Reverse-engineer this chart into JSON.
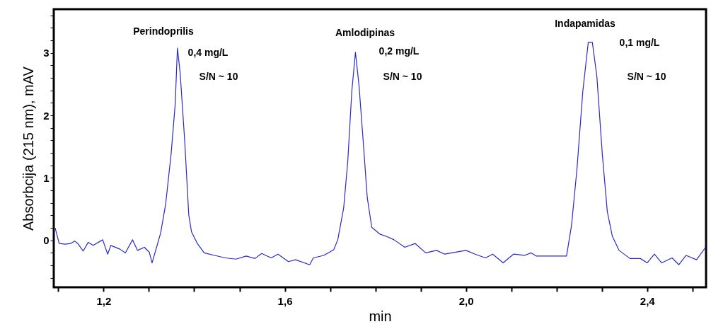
{
  "chart_data": {
    "type": "line",
    "xlabel": "min",
    "ylabel": "Absorbcija (215 nm), mAV",
    "x": [
      1.093,
      1.102,
      1.115,
      1.127,
      1.136,
      1.143,
      1.155,
      1.166,
      1.177,
      1.198,
      1.209,
      1.216,
      1.236,
      1.248,
      1.264,
      1.275,
      1.29,
      1.301,
      1.307,
      1.317,
      1.326,
      1.337,
      1.349,
      1.358,
      1.363,
      1.369,
      1.379,
      1.388,
      1.394,
      1.407,
      1.422,
      1.445,
      1.469,
      1.492,
      1.515,
      1.534,
      1.549,
      1.57,
      1.585,
      1.608,
      1.624,
      1.655,
      1.663,
      1.686,
      1.708,
      1.717,
      1.73,
      1.739,
      1.748,
      1.756,
      1.764,
      1.773,
      1.782,
      1.792,
      1.81,
      1.826,
      1.841,
      1.865,
      1.888,
      1.911,
      1.935,
      1.953,
      2.0,
      2.02,
      2.043,
      2.059,
      2.082,
      2.105,
      2.129,
      2.144,
      2.155,
      2.222,
      2.233,
      2.245,
      2.258,
      2.27,
      2.279,
      2.289,
      2.301,
      2.312,
      2.323,
      2.338,
      2.362,
      2.385,
      2.4,
      2.416,
      2.432,
      2.455,
      2.47,
      2.486,
      2.509,
      2.529
    ],
    "series": [
      {
        "color": "#2a2ac8",
        "values": [
          0.2,
          -0.05,
          -0.06,
          -0.05,
          -0.01,
          -0.05,
          -0.17,
          -0.03,
          -0.08,
          0.01,
          -0.22,
          -0.08,
          -0.14,
          -0.2,
          0.01,
          -0.16,
          -0.11,
          -0.19,
          -0.36,
          -0.11,
          0.12,
          0.58,
          1.38,
          2.17,
          3.08,
          2.68,
          1.6,
          0.41,
          0.14,
          -0.05,
          -0.2,
          -0.24,
          -0.28,
          -0.3,
          -0.25,
          -0.29,
          -0.21,
          -0.28,
          -0.22,
          -0.34,
          -0.31,
          -0.39,
          -0.28,
          -0.24,
          -0.15,
          0.01,
          0.52,
          1.26,
          2.39,
          3.01,
          2.47,
          1.6,
          0.69,
          0.21,
          0.1,
          0.06,
          0.01,
          -0.11,
          -0.05,
          -0.2,
          -0.16,
          -0.22,
          -0.16,
          -0.22,
          -0.28,
          -0.22,
          -0.36,
          -0.22,
          -0.24,
          -0.2,
          -0.25,
          -0.25,
          0.24,
          1.14,
          2.39,
          3.17,
          3.17,
          2.62,
          1.38,
          0.46,
          0.07,
          -0.16,
          -0.29,
          -0.29,
          -0.36,
          -0.22,
          -0.36,
          -0.28,
          -0.39,
          -0.24,
          -0.31,
          -0.11
        ]
      }
    ],
    "xlim": [
      1.09,
      2.53
    ],
    "ylim": [
      -0.75,
      3.7
    ],
    "xticks": [
      {
        "value": 1.1,
        "label": null
      },
      {
        "value": 1.2,
        "label": "1,2"
      },
      {
        "value": 1.3,
        "label": null
      },
      {
        "value": 1.4,
        "label": null
      },
      {
        "value": 1.5,
        "label": null
      },
      {
        "value": 1.6,
        "label": "1,6"
      },
      {
        "value": 1.7,
        "label": null
      },
      {
        "value": 1.8,
        "label": null
      },
      {
        "value": 1.9,
        "label": null
      },
      {
        "value": 2.0,
        "label": "2,0"
      },
      {
        "value": 2.1,
        "label": null
      },
      {
        "value": 2.2,
        "label": null
      },
      {
        "value": 2.3,
        "label": null
      },
      {
        "value": 2.4,
        "label": "2,4"
      },
      {
        "value": 2.5,
        "label": null
      }
    ],
    "yticks": [
      {
        "value": -0.6,
        "label": null
      },
      {
        "value": -0.4,
        "label": null
      },
      {
        "value": -0.2,
        "label": null
      },
      0,
      {
        "value": 0.2,
        "label": null
      },
      {
        "value": 0.4,
        "label": null
      },
      {
        "value": 0.6,
        "label": null
      },
      {
        "value": 0.8,
        "label": null
      },
      1,
      {
        "value": 1.2,
        "label": null
      },
      {
        "value": 1.4,
        "label": null
      },
      {
        "value": 1.6,
        "label": null
      },
      {
        "value": 1.8,
        "label": null
      },
      2,
      {
        "value": 2.2,
        "label": null
      },
      {
        "value": 2.4,
        "label": null
      },
      {
        "value": 2.6,
        "label": null
      },
      {
        "value": 2.8,
        "label": null
      },
      3,
      {
        "value": 3.2,
        "label": null
      },
      {
        "value": 3.4,
        "label": null
      },
      {
        "value": 3.6,
        "label": null
      }
    ],
    "grid": false,
    "annotations": [
      "Perindoprilis",
      "0,4 mg/L",
      "S/N ~ 10",
      "Amlodipinas",
      "0,2 mg/L",
      "S/N ~ 10",
      "Indapamidas",
      "0,1 mg/L",
      "S/N ~ 10"
    ]
  }
}
